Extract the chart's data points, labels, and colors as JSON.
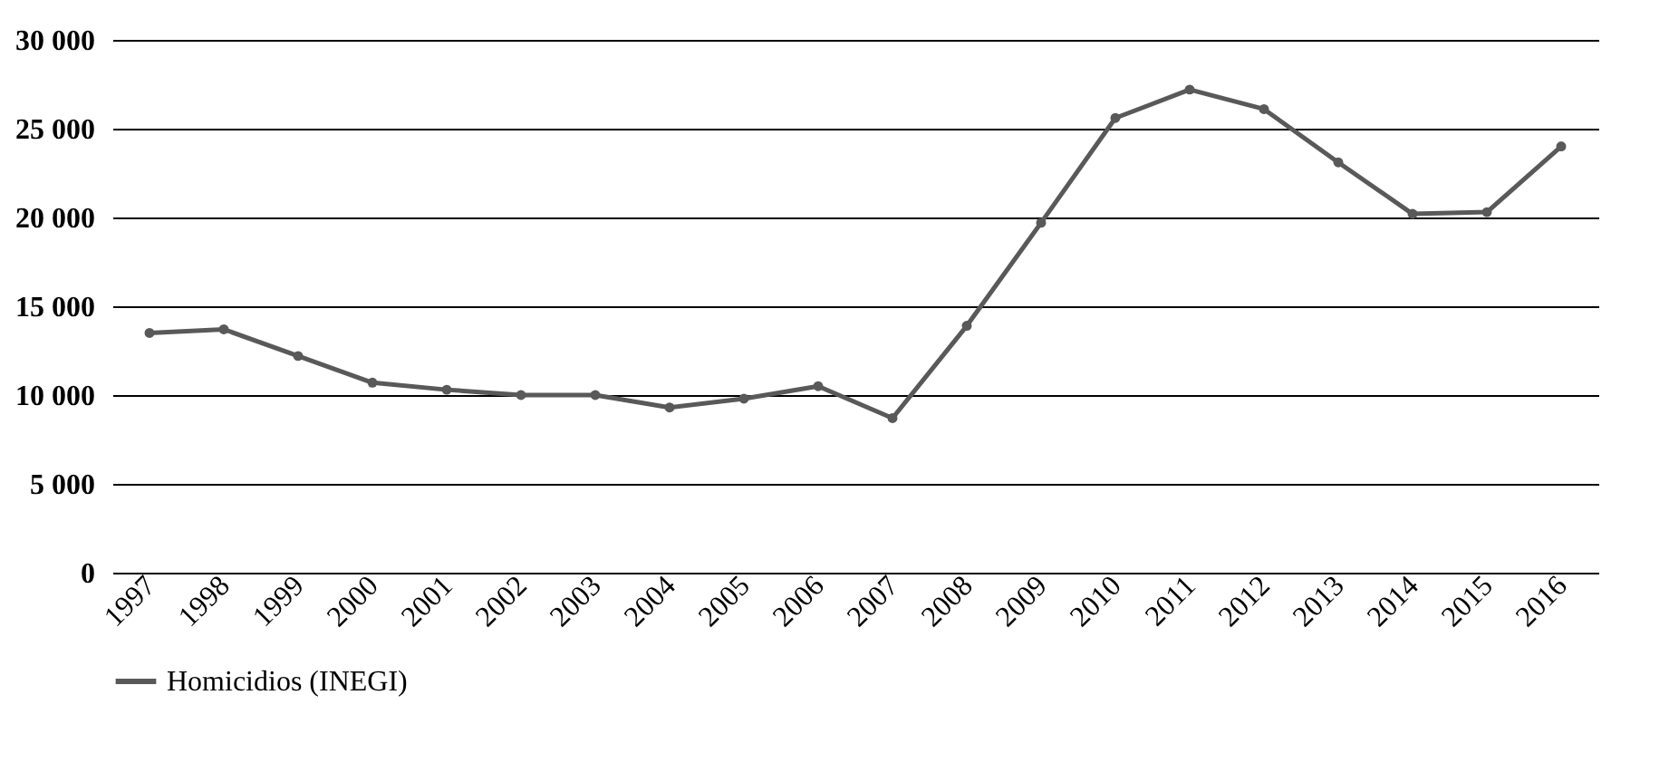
{
  "chart_data": {
    "type": "line",
    "categories": [
      "1997",
      "1998",
      "1999",
      "2000",
      "2001",
      "2002",
      "2003",
      "2004",
      "2005",
      "2006",
      "2007",
      "2008",
      "2009",
      "2010",
      "2011",
      "2012",
      "2013",
      "2014",
      "2015",
      "2016"
    ],
    "series": [
      {
        "name": "Homicidios (INEGI)",
        "color": "#595959",
        "values": [
          13500,
          13700,
          12200,
          10700,
          10300,
          10000,
          10000,
          9300,
          9800,
          10500,
          8700,
          13900,
          19700,
          25600,
          27200,
          26100,
          23100,
          20200,
          20300,
          24000
        ]
      }
    ],
    "ylim": [
      0,
      30000
    ],
    "yticks": [
      0,
      {
        "value": 5000,
        "label": "5 000"
      },
      {
        "value": 10000,
        "label": "10 000"
      },
      {
        "value": 15000,
        "label": "15 000"
      },
      {
        "value": 20000,
        "label": "20 000"
      },
      {
        "value": 25000,
        "label": "25 000"
      },
      {
        "value": 30000,
        "label": "30 000"
      }
    ],
    "grid": "y",
    "legend": "bottom",
    "marker": "circle",
    "line_style": "solid"
  }
}
